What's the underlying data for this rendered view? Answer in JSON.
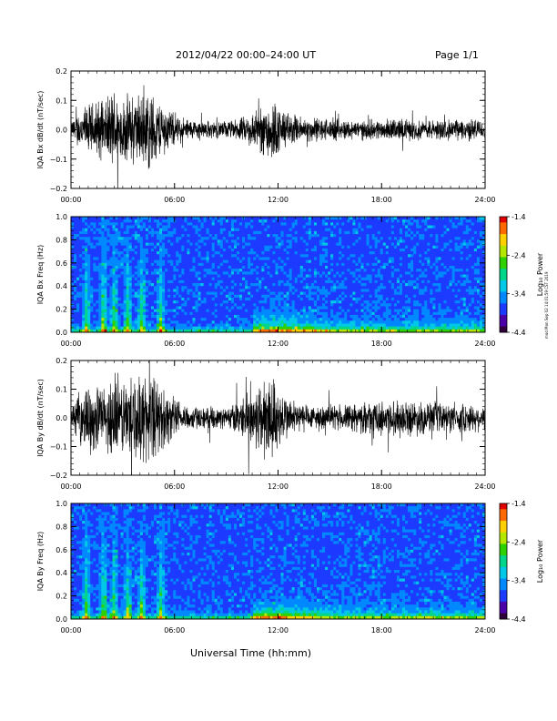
{
  "header": {
    "title": "2012/04/22  00:00–24:00 UT",
    "page": "Page 1/1"
  },
  "side_note": "mod Mon Sep 02 14:01:59 CST 2019",
  "colors": {
    "trace": "#000000",
    "colormap": [
      "#30003a",
      "#4b00a8",
      "#1d3bff",
      "#0089ff",
      "#00c8e6",
      "#00d58a",
      "#2ed000",
      "#b5e600",
      "#ffd000",
      "#ff6a00",
      "#e00000"
    ]
  },
  "chart_data": [
    {
      "type": "line",
      "ylabel": "IQA Bx dB/dt (nT/sec)",
      "ylim": [
        -0.2,
        0.2
      ],
      "yticks": [
        "0.2",
        "0.1",
        "0.0",
        "−0.1",
        "−0.2"
      ],
      "xticks": [
        "00:00",
        "06:00",
        "12:00",
        "18:00",
        "24:00"
      ],
      "xlim_hours": [
        0,
        24
      ],
      "envelope": {
        "hours": [
          0,
          0.5,
          1,
          1.5,
          2,
          2.5,
          3,
          3.5,
          4,
          4.5,
          5,
          5.5,
          6,
          6.5,
          7,
          7.5,
          8,
          8.5,
          9,
          9.5,
          10,
          10.5,
          11,
          11.5,
          12,
          12.5,
          13,
          13.5,
          14,
          15,
          16,
          17,
          18,
          19,
          20,
          21,
          22,
          23,
          24
        ],
        "amplitude": [
          0.03,
          0.08,
          0.1,
          0.12,
          0.11,
          0.17,
          0.12,
          0.15,
          0.14,
          0.17,
          0.12,
          0.1,
          0.06,
          0.05,
          0.04,
          0.04,
          0.035,
          0.035,
          0.035,
          0.04,
          0.05,
          0.07,
          0.09,
          0.14,
          0.1,
          0.07,
          0.06,
          0.05,
          0.05,
          0.045,
          0.04,
          0.04,
          0.04,
          0.045,
          0.04,
          0.04,
          0.04,
          0.045,
          0.04
        ]
      }
    },
    {
      "type": "heatmap",
      "ylabel": "IQA Bx Freq (Hz)",
      "ylim": [
        0,
        1.0
      ],
      "yticks": [
        "1.0",
        "0.8",
        "0.6",
        "0.4",
        "0.2",
        "0.0"
      ],
      "xticks": [
        "00:00",
        "06:00",
        "12:00",
        "18:00",
        "24:00"
      ],
      "xlim_hours": [
        0,
        24
      ],
      "colorbar": {
        "label": "Log₁₀ Power",
        "range": [
          -4.4,
          -1.4
        ],
        "ticks": [
          "-1.4",
          "-2.4",
          "-3.4",
          "-4.4"
        ]
      },
      "bursts_hours": [
        0.9,
        1.9,
        2.5,
        3.3,
        4.1,
        5.2
      ],
      "enhanced_band": {
        "start_hours": 10.5,
        "end_hours": 24,
        "peak_hours": 12
      }
    },
    {
      "type": "line",
      "ylabel": "IQA By dB/dt (nT/sec)",
      "ylim": [
        -0.2,
        0.2
      ],
      "yticks": [
        "0.2",
        "0.1",
        "0.0",
        "−0.1",
        "−0.2"
      ],
      "xticks": [
        "00:00",
        "06:00",
        "12:00",
        "18:00",
        "24:00"
      ],
      "xlim_hours": [
        0,
        24
      ],
      "envelope": {
        "hours": [
          0,
          0.5,
          1,
          1.5,
          2,
          2.5,
          3,
          3.5,
          4,
          4.5,
          5,
          5.5,
          6,
          6.5,
          7,
          7.5,
          8,
          8.5,
          9,
          9.5,
          10,
          10.5,
          11,
          11.5,
          12,
          12.5,
          13,
          13.5,
          14,
          15,
          16,
          17,
          18,
          19,
          20,
          21,
          22,
          23,
          24
        ],
        "amplitude": [
          0.04,
          0.1,
          0.13,
          0.14,
          0.12,
          0.2,
          0.15,
          0.2,
          0.16,
          0.2,
          0.14,
          0.12,
          0.08,
          0.06,
          0.05,
          0.045,
          0.04,
          0.04,
          0.045,
          0.06,
          0.08,
          0.12,
          0.16,
          0.2,
          0.13,
          0.09,
          0.07,
          0.06,
          0.05,
          0.05,
          0.055,
          0.06,
          0.07,
          0.075,
          0.07,
          0.065,
          0.06,
          0.06,
          0.05
        ]
      }
    },
    {
      "type": "heatmap",
      "ylabel": "IQA By Freq (Hz)",
      "xlabel": "Universal Time (hh:mm)",
      "ylim": [
        0,
        1.0
      ],
      "yticks": [
        "1.0",
        "0.8",
        "0.6",
        "0.4",
        "0.2",
        "0.0"
      ],
      "xticks": [
        "00:00",
        "06:00",
        "12:00",
        "18:00",
        "24:00"
      ],
      "xlim_hours": [
        0,
        24
      ],
      "colorbar": {
        "label": "Log₁₀ Power",
        "range": [
          -4.4,
          -1.4
        ],
        "ticks": [
          "-1.4",
          "-2.4",
          "-3.4",
          "-4.4"
        ]
      },
      "bursts_hours": [
        0.9,
        1.9,
        2.5,
        3.3,
        4.1,
        5.2
      ],
      "enhanced_band": {
        "start_hours": 10.5,
        "end_hours": 24,
        "peak_hours": 11.8
      }
    }
  ]
}
